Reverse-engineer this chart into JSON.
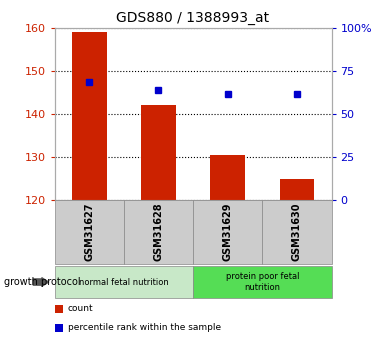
{
  "title": "GDS880 / 1388993_at",
  "samples": [
    "GSM31627",
    "GSM31628",
    "GSM31629",
    "GSM31630"
  ],
  "bar_values": [
    159.0,
    142.0,
    130.5,
    125.0
  ],
  "bar_baseline": 120,
  "percentile_values": [
    68.75,
    63.75,
    61.25,
    61.25
  ],
  "bar_color": "#cc2200",
  "dot_color": "#0000cc",
  "ylim_left": [
    120,
    160
  ],
  "ylim_right": [
    0,
    100
  ],
  "yticks_left": [
    120,
    130,
    140,
    150,
    160
  ],
  "yticks_right": [
    0,
    25,
    50,
    75,
    100
  ],
  "yticklabels_right": [
    "0",
    "25",
    "50",
    "75",
    "100%"
  ],
  "groups": [
    {
      "label": "normal fetal nutrition",
      "samples": [
        0,
        1
      ],
      "color": "#c8e8c8"
    },
    {
      "label": "protein poor fetal\nnutrition",
      "samples": [
        2,
        3
      ],
      "color": "#55dd55"
    }
  ],
  "group_label": "growth protocol",
  "legend": [
    {
      "color": "#cc2200",
      "label": "count"
    },
    {
      "color": "#0000cc",
      "label": "percentile rank within the sample"
    }
  ],
  "bar_width": 0.5,
  "background_color": "#ffffff",
  "tick_label_color_left": "#cc2200",
  "tick_label_color_right": "#0000cc",
  "sample_box_color": "#cccccc"
}
